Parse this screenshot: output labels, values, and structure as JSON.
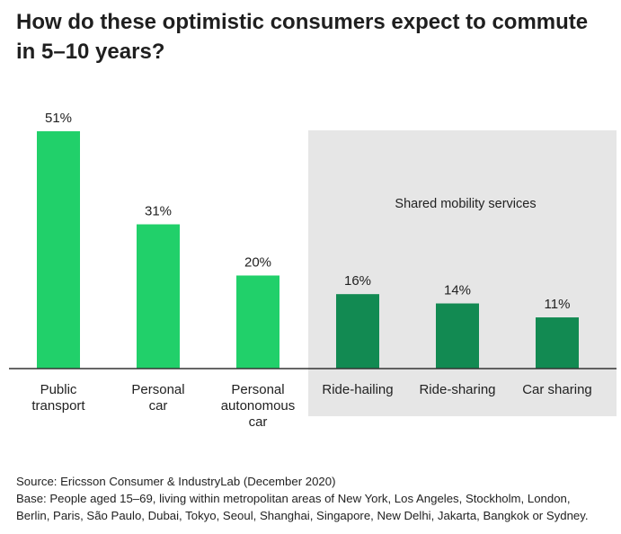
{
  "title": "How do these optimistic consumers expect to commute in 5–10 years?",
  "colors": {
    "individual": "#21d06a",
    "shared": "#128a52",
    "shared_panel": "#e6e6e6",
    "axis": "#333333"
  },
  "chart_data": {
    "type": "bar",
    "title": "How do these optimistic consumers expect to commute in 5–10 years?",
    "categories": [
      [
        "Public",
        "transport"
      ],
      [
        "Personal",
        "car"
      ],
      [
        "Personal",
        "autonomous",
        "car"
      ],
      [
        "Ride-hailing"
      ],
      [
        "Ride-sharing"
      ],
      [
        "Car sharing"
      ]
    ],
    "values": [
      51,
      31,
      20,
      16,
      14,
      11
    ],
    "value_labels": [
      "51%",
      "31%",
      "20%",
      "16%",
      "14%",
      "11%"
    ],
    "group": [
      "individual",
      "individual",
      "individual",
      "shared",
      "shared",
      "shared"
    ],
    "shared_group_label": "Shared mobility services",
    "ylim": [
      0,
      51
    ],
    "xlabel": "",
    "ylabel": "",
    "grid": false
  },
  "footnote": {
    "source": "Source: Ericsson Consumer & IndustryLab (December 2020)",
    "base_line1": "Base: People aged 15–69, living within metropolitan areas of New York, Los Angeles,  Stockholm,  London,",
    "base_line2": "Berlin, Paris, São Paulo, Dubai, Tokyo, Seoul, Shanghai, Singapore, New Delhi, Jakarta, Bangkok or Sydney."
  }
}
